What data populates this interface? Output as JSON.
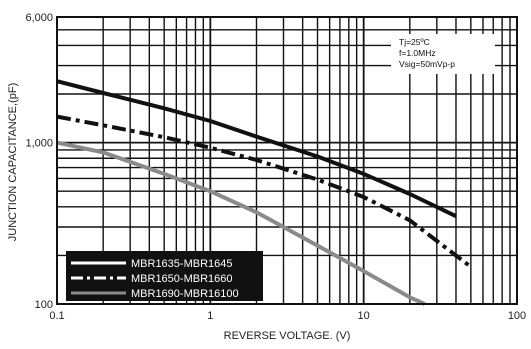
{
  "chart_data": {
    "type": "line",
    "title": "",
    "xlabel": "REVERSE VOLTAGE. (V)",
    "ylabel": "JUNCTION CAPACITANCE,(pF)",
    "x_scale": "log",
    "y_scale": "log",
    "xlim": [
      0.1,
      100
    ],
    "ylim": [
      100,
      6000
    ],
    "x_tick_labels": [
      {
        "value": 0.1,
        "label": "0.1"
      },
      {
        "value": 1,
        "label": "1"
      },
      {
        "value": 10,
        "label": "10"
      },
      {
        "value": 100,
        "label": "100"
      }
    ],
    "y_tick_labels": [
      {
        "value": 100,
        "label": "100"
      },
      {
        "value": 1000,
        "label": "1,000"
      },
      {
        "value": 6000,
        "label": "6,000"
      }
    ],
    "grid": true,
    "annotations": [
      "Tj=25ºC",
      "f=1.0MHz",
      "Vsig=50mVp-p"
    ],
    "legend_position": "bottom-left",
    "series": [
      {
        "name": "MBR1635-MBR1645",
        "style": "solid",
        "color": "#111111",
        "x": [
          0.1,
          0.2,
          0.5,
          1,
          2,
          5,
          10,
          20,
          40
        ],
        "y": [
          2400,
          2030,
          1630,
          1360,
          1090,
          820,
          640,
          480,
          350
        ]
      },
      {
        "name": "MBR1650-MBR1660",
        "style": "dashdot",
        "color": "#111111",
        "x": [
          0.1,
          0.2,
          0.5,
          1,
          2,
          5,
          10,
          20,
          50
        ],
        "y": [
          1450,
          1280,
          1080,
          930,
          780,
          590,
          460,
          330,
          170
        ]
      },
      {
        "name": "MBR1690-MBR16100",
        "style": "solid",
        "color": "#8a8a8a",
        "x": [
          0.1,
          0.2,
          0.5,
          1,
          2,
          5,
          10,
          20,
          25
        ],
        "y": [
          1000,
          870,
          640,
          500,
          370,
          230,
          160,
          110,
          100
        ]
      }
    ]
  }
}
